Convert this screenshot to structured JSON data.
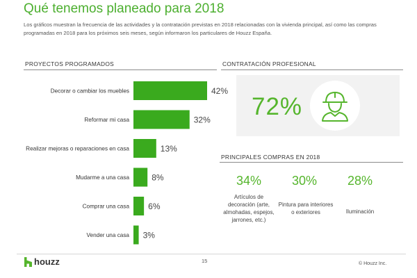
{
  "page": {
    "title": "Qué tenemos planeado para 2018",
    "intro": "Los gráficos muestran la frecuencia de las actividades y la contratación previstas en 2018 relacionadas con la vivienda principal, así como las compras programadas en 2018 para los próximos seis meses, según informaron los particulares de Houzz España."
  },
  "chart_data": [
    {
      "type": "bar",
      "orientation": "horizontal",
      "title": "PROYECTOS PROGRAMADOS",
      "categories": [
        "Decorar o cambiar los muebles",
        "Reformar mi casa",
        "Realizar mejoras o reparaciones en casa",
        "Mudarme a una casa",
        "Comprar una casa",
        "Vender una casa"
      ],
      "values": [
        42,
        32,
        13,
        8,
        6,
        3
      ],
      "value_labels": [
        "42%",
        "32%",
        "13%",
        "8%",
        "6%",
        "3%"
      ],
      "unit": "%",
      "color": "#3aaa1e"
    },
    {
      "type": "table",
      "title": "CONTRATACIÓN PROFESIONAL",
      "values": [
        72
      ],
      "value_labels": [
        "72%"
      ],
      "icon": "construction-worker-icon"
    },
    {
      "type": "table",
      "title": "PRINCIPALES COMPRAS EN 2018",
      "items": [
        {
          "value": 34,
          "value_label": "34%",
          "label": "Artículos de decoración (arte, almohadas, espejos, jarrones, etc.)"
        },
        {
          "value": 30,
          "value_label": "30%",
          "label": "Pintura para interiores o exteriores"
        },
        {
          "value": 28,
          "value_label": "28%",
          "label": "Iluminación"
        }
      ]
    }
  ],
  "footer": {
    "logo_text": "houzz",
    "page_number": "15",
    "copyright": "© Houzz Inc."
  },
  "colors": {
    "accent": "#55b52c",
    "bar": "#3aaa1e",
    "panel": "#f2f2f2"
  }
}
